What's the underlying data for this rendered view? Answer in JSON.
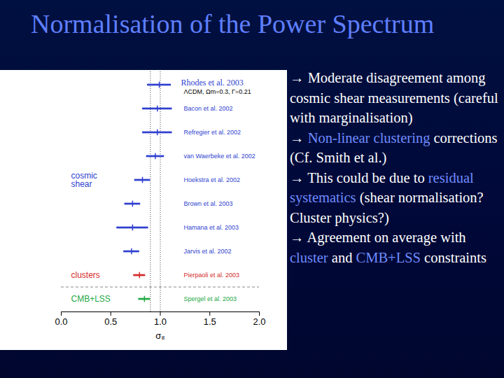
{
  "slide": {
    "title": "Normalisation of the Power Spectrum",
    "bullet_symbol": "→",
    "bullets": [
      [
        {
          "text": "Moderate disagreement among cosmic shear measurements (careful with marginalisation)"
        }
      ],
      [
        {
          "text": "Non-linear clustering",
          "highlight": true
        },
        {
          "text": " corrections (Cf. Smith et al.)"
        }
      ],
      [
        {
          "text": "This could be due to "
        },
        {
          "text": "residual systematics",
          "highlight": true
        },
        {
          "text": " (shear normalisation? Cluster physics?)"
        }
      ],
      [
        {
          "text": "Agreement on average with "
        },
        {
          "text": "cluster",
          "highlight": true
        },
        {
          "text": " and "
        },
        {
          "text": "CMB+LSS",
          "highlight": true
        },
        {
          "text": " constraints"
        }
      ]
    ]
  },
  "chart_data": {
    "type": "errorbar",
    "orientation": "horizontal",
    "subtitle": "ΛCDM, Ωm=0.3, Γ=0.21",
    "x_label": "σ₈",
    "xlim": [
      0,
      2
    ],
    "xticks": [
      {
        "value": 0,
        "label": "0.0"
      },
      {
        "value": 0.5,
        "label": "0.5"
      },
      {
        "value": 1,
        "label": "1.0"
      },
      {
        "value": 1.5,
        "label": "1.5"
      },
      {
        "value": 2,
        "label": "2.0"
      }
    ],
    "tick_labels": "x",
    "reference_lines": [
      0.9,
      1.0
    ],
    "series": [
      {
        "name": "cosmic shear",
        "color": "#2f3fd0",
        "categories": [
          "Rhodes et al. 2003",
          "Bacon et al. 2002",
          "Refregier et al. 2002",
          "van Waerbeke et al. 2002",
          "Hoekstra et al. 2002",
          "Brown et al. 2003",
          "Hamana et al. 2003",
          "Jarvis et al. 2002"
        ],
        "values": [
          0.99,
          0.97,
          0.97,
          0.95,
          0.82,
          0.72,
          0.72,
          0.71
        ],
        "errors": [
          0.12,
          0.15,
          0.15,
          0.09,
          0.08,
          0.08,
          0.16,
          0.08
        ]
      },
      {
        "name": "clusters",
        "color": "#d42a2a",
        "categories": [
          "Pierpaoli et al. 2003"
        ],
        "values": [
          0.79
        ],
        "errors": [
          0.06
        ]
      },
      {
        "name": "CMB+LSS",
        "color": "#22a845",
        "categories": [
          "Spergel et al. 2003"
        ],
        "values": [
          0.84
        ],
        "errors": [
          0.06
        ]
      }
    ]
  }
}
